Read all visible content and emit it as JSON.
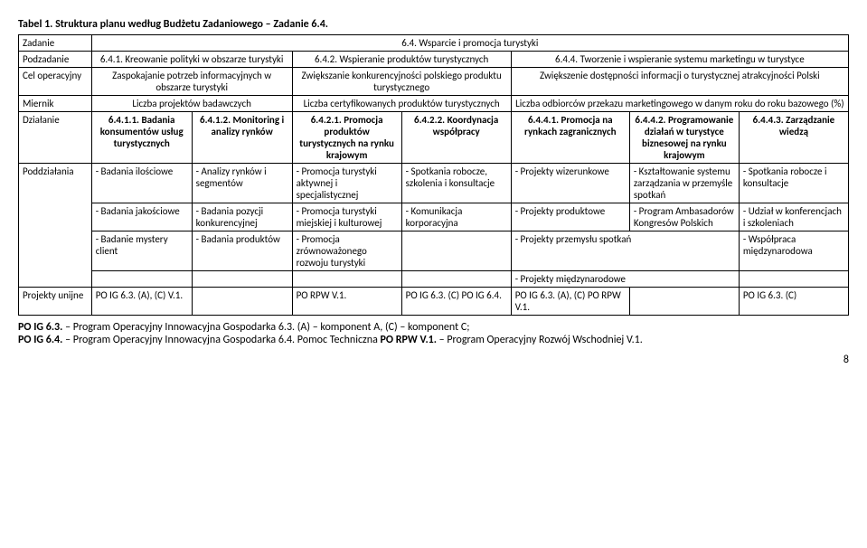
{
  "title": "Tabel 1. Struktura planu według Budżetu Zadaniowego – Zadanie 6.4.",
  "rows": {
    "zadanie_label": "Zadanie",
    "zadanie_value": "6.4. Wsparcie i promocja turystyki",
    "podzadanie_label": "Podzadanie",
    "podzadanie_1": "6.4.1. Kreowanie polityki w obszarze turystyki",
    "podzadanie_2": "6.4.2. Wspieranie produktów turystycznych",
    "podzadanie_3": "6.4.4. Tworzenie i wspieranie systemu marketingu w turystyce",
    "cel_label": "Cel operacyjny",
    "cel_1": "Zaspokajanie potrzeb informacyjnych w obszarze turystyki",
    "cel_2": "Zwiększanie konkurencyjności polskiego produktu turystycznego",
    "cel_3": "Zwiększenie dostępności informacji o turystycznej atrakcyjności Polski",
    "miernik_label": "Miernik",
    "miernik_1": "Liczba projektów badawczych",
    "miernik_2": "Liczba certyfikowanych produktów turystycznych",
    "miernik_3": "Liczba odbiorców przekazu marketingowego w danym roku do roku bazowego (%)",
    "dzialanie_label": "Działanie",
    "dzialanie_1": "6.4.1.1. Badania konsumentów usług turystycznych",
    "dzialanie_2": "6.4.1.2. Monitoring i analizy rynków",
    "dzialanie_3": "6.4.2.1. Promocja produktów turystycznych na rynku krajowym",
    "dzialanie_4": "6.4.2.2. Koordynacja współpracy",
    "dzialanie_5": "6.4.4.1. Promocja na rynkach zagranicznych",
    "dzialanie_6": "6.4.4.2. Programowanie działań w turystyce biznesowej na rynku krajowym",
    "dzialanie_7": "6.4.4.3. Zarządzanie wiedzą",
    "poddz_label": "Poddziałania",
    "p1_1": "- Badania ilościowe",
    "p1_2": "- Analizy rynków i segmentów",
    "p1_3": "- Promocja turystyki aktywnej i specjalistycznej",
    "p1_4": "- Spotkania robocze, szkolenia i konsultacje",
    "p1_5": "- Projekty wizerunkowe",
    "p1_6": "- Kształtowanie systemu zarządzania w przemyśle spotkań",
    "p1_7": "- Spotkania robocze i konsultacje",
    "p2_1": "- Badania jakościowe",
    "p2_2": "- Badania pozycji konkurencyjnej",
    "p2_3": "- Promocja turystyki miejskiej i kulturowej",
    "p2_4": "- Komunikacja korporacyjna",
    "p2_5": "- Projekty produktowe",
    "p2_6": "- Program Ambasadorów Kongresów Polskich",
    "p2_7": "- Udział w konferencjach i szkoleniach",
    "p3_1": "- Badanie mystery client",
    "p3_2": "- Badania produktów",
    "p3_3": "- Promocja zrównoważonego rozwoju turystyki",
    "p3_5": "- Projekty przemysłu spotkań",
    "p3_7": "- Współpraca międzynarodowa",
    "p4_5": "- Projekty międzynarodowe",
    "pu_label": "Projekty unijne",
    "pu_1": "PO IG 6.3. (A), (C) V.1.",
    "pu_3": "PO RPW V.1.",
    "pu_4": "PO IG 6.3. (C) PO IG 6.4.",
    "pu_5": "PO IG 6.3. (A), (C) PO RPW V.1.",
    "pu_7": "PO IG 6.3. (C)"
  },
  "footer": {
    "l1a": "PO IG 6.3.",
    "l1b": " – Program Operacyjny Innowacyjna Gospodarka 6.3. (A) – komponent A, (C) – komponent C;",
    "l2a": "PO IG 6.4.",
    "l2b": " – Program Operacyjny Innowacyjna Gospodarka 6.4. Pomoc Techniczna      ",
    "l2c": "PO RPW V.1.",
    "l2d": " – Program Operacyjny Rozwój Wschodniej V.1."
  },
  "pagenum": "8"
}
